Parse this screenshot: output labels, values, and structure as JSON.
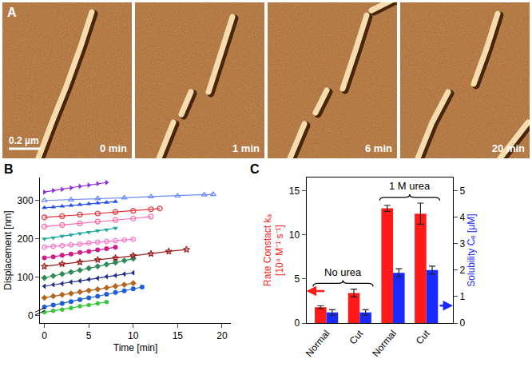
{
  "image_panel": {
    "label": "A",
    "scale_bar": "0.2 µm",
    "frames": [
      "0 min",
      "1 min",
      "6 min",
      "20 min"
    ]
  },
  "chart_data": [
    {
      "type": "line",
      "label": "B",
      "x_label": "Time [min]",
      "y_label": "Displacement [nm]",
      "xlim": [
        -0.5,
        21
      ],
      "xticks": [
        0,
        5,
        10,
        15,
        20
      ],
      "ylim": [
        -20,
        360
      ],
      "yticks": [
        0,
        100,
        200,
        300
      ],
      "series": [
        {
          "color": "#39c639",
          "marker": "hexagon",
          "x": [
            0,
            1,
            2,
            3,
            4,
            5,
            6,
            7
          ],
          "values": [
            8,
            12,
            15,
            19,
            24,
            27,
            31,
            35
          ]
        },
        {
          "color": "#1f5fd6",
          "marker": "circle",
          "x": [
            0,
            1,
            2,
            3,
            4,
            5,
            6,
            7,
            8,
            9,
            10,
            11
          ],
          "values": [
            22,
            27,
            31,
            36,
            41,
            46,
            50,
            55,
            60,
            64,
            69,
            74
          ]
        },
        {
          "color": "#b5651d",
          "marker": "diamond",
          "x": [
            0,
            1,
            2,
            3,
            4,
            5,
            6,
            7,
            8,
            9,
            10
          ],
          "values": [
            46,
            50,
            54,
            57,
            61,
            65,
            68,
            72,
            76,
            80,
            84
          ]
        },
        {
          "color": "#1c2a8c",
          "marker": "triangle-left",
          "x": [
            0,
            1,
            2,
            3,
            4,
            5,
            6,
            7,
            8,
            9,
            10
          ],
          "values": [
            76,
            80,
            83,
            87,
            90,
            94,
            97,
            101,
            104,
            108,
            111
          ]
        },
        {
          "color": "#2e8b57",
          "marker": "diamond",
          "x": [
            0,
            1,
            2,
            3,
            4,
            5,
            6,
            7,
            8,
            9,
            10
          ],
          "values": [
            98,
            103,
            108,
            113,
            118,
            123,
            128,
            133,
            138,
            143,
            148
          ]
        },
        {
          "color": "#9a1f1f",
          "marker": "star-open",
          "x": [
            0,
            2,
            4,
            6,
            8,
            10,
            12,
            14,
            16
          ],
          "values": [
            128,
            134,
            139,
            145,
            150,
            156,
            161,
            167,
            172
          ]
        },
        {
          "color": "#d41b8c",
          "marker": "circle",
          "x": [
            0,
            1,
            2,
            3,
            4,
            5,
            6,
            7,
            8
          ],
          "values": [
            150,
            153,
            157,
            160,
            164,
            167,
            171,
            174,
            178
          ]
        },
        {
          "color": "#ff77c8",
          "marker": "hexagon-open",
          "x": [
            0,
            1,
            2,
            3,
            4,
            5,
            6,
            7,
            8,
            9,
            10
          ],
          "values": [
            178,
            180,
            182,
            184,
            186,
            189,
            191,
            193,
            195,
            197,
            199
          ]
        },
        {
          "color": "#1fa9a0",
          "marker": "triangle-down",
          "x": [
            0,
            1,
            2,
            3,
            4,
            5,
            6,
            7,
            8
          ],
          "values": [
            200,
            203,
            207,
            210,
            214,
            217,
            221,
            224,
            228
          ]
        },
        {
          "color": "#ff66aa",
          "marker": "circle-open",
          "x": [
            0,
            2,
            4,
            6,
            8,
            10,
            12
          ],
          "values": [
            232,
            236,
            240,
            245,
            249,
            253,
            258
          ]
        },
        {
          "color": "#e8303a",
          "marker": "circle-open",
          "x": [
            0,
            2,
            4,
            6,
            8,
            10,
            12,
            13
          ],
          "values": [
            256,
            259,
            263,
            266,
            270,
            273,
            277,
            279
          ]
        },
        {
          "color": "#2850e8",
          "marker": "triangle-up",
          "x": [
            0,
            1,
            2,
            3,
            4,
            5,
            6,
            7,
            8
          ],
          "values": [
            281,
            283,
            285,
            287,
            289,
            291,
            293,
            295,
            297
          ]
        },
        {
          "color": "#6a8cff",
          "marker": "triangle-up-open",
          "x": [
            0,
            3,
            6,
            9,
            12,
            15,
            18,
            19
          ],
          "values": [
            300,
            302,
            305,
            307,
            310,
            312,
            315,
            316
          ]
        },
        {
          "color": "#8e2de2",
          "marker": "triangle-right",
          "x": [
            0,
            1,
            2,
            3,
            4,
            5,
            6,
            7
          ],
          "values": [
            322,
            326,
            329,
            333,
            337,
            340,
            344,
            347
          ]
        }
      ]
    },
    {
      "type": "bar",
      "label": "C",
      "categories": [
        "Normal",
        "Cut",
        "Normal",
        "Cut"
      ],
      "y_label": "Rate Constact kₐ [10⁴ M⁻¹ s⁻¹]",
      "y2_label": "Solubility Cₑ [μM]",
      "ylim": [
        0,
        16.5
      ],
      "yticks": [
        0,
        5,
        10,
        15
      ],
      "y2lim": [
        0,
        5.5
      ],
      "y2ticks": [
        0,
        1,
        2,
        3,
        4,
        5
      ],
      "annotations": [
        "No urea",
        "1 M urea"
      ],
      "series": [
        {
          "color": "#ff1a1a",
          "values": [
            1.8,
            3.4,
            13.0,
            12.4
          ],
          "errors": [
            0.15,
            0.45,
            0.35,
            1.2
          ]
        },
        {
          "color": "#1a2aff",
          "axis": "y2",
          "values": [
            0.4,
            0.4,
            1.9,
            2.0
          ],
          "errors": [
            0.1,
            0.1,
            0.15,
            0.15
          ]
        }
      ]
    }
  ]
}
